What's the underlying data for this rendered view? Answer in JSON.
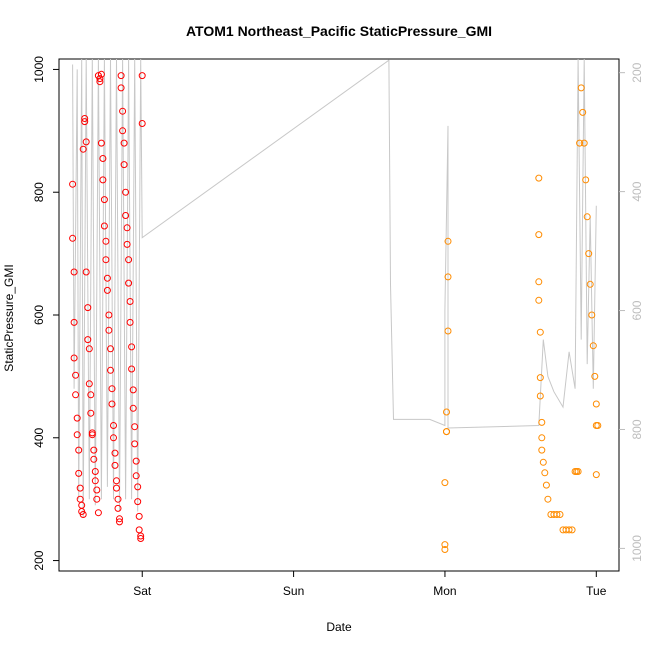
{
  "chart_data": {
    "type": "scatter",
    "title": "ATOM1 Northeast_Pacific StaticPressure_GMI",
    "xlabel": "Date",
    "ylabel": "StaticPressure_GMI",
    "x_ticks": [
      {
        "label": "Sat",
        "value": 1.0
      },
      {
        "label": "Sun",
        "value": 2.0
      },
      {
        "label": "Mon",
        "value": 3.0
      },
      {
        "label": "Tue",
        "value": 4.0
      }
    ],
    "xlim": [
      0.45,
      4.15
    ],
    "ylim": [
      183,
      1017
    ],
    "y_ticks": [
      200,
      400,
      600,
      800,
      1000
    ],
    "y2_ticks": [
      200,
      400,
      600,
      800,
      1000
    ],
    "y2lim": [
      1038,
      177
    ],
    "grid": false,
    "colors": {
      "series_a": "#ff0000",
      "series_b": "#ff8c00",
      "trace": "#c8c8c8",
      "right_axis": "#bdbdbd"
    },
    "series": [
      {
        "color": "#ff0000",
        "x": [
          0.54,
          0.54,
          0.55,
          0.55,
          0.55,
          0.56,
          0.56,
          0.57,
          0.57,
          0.58,
          0.58,
          0.59,
          0.59,
          0.6,
          0.6,
          0.61,
          0.61,
          0.62,
          0.62,
          0.63,
          0.63,
          0.64,
          0.64,
          0.65,
          0.65,
          0.66,
          0.66,
          0.67,
          0.67,
          0.68,
          0.68,
          0.69,
          0.69,
          0.7,
          0.7,
          0.71,
          0.71,
          0.72,
          0.72,
          0.73,
          0.73,
          0.74,
          0.74,
          0.75,
          0.75,
          0.76,
          0.76,
          0.77,
          0.77,
          0.78,
          0.78,
          0.79,
          0.79,
          0.8,
          0.8,
          0.81,
          0.81,
          0.82,
          0.82,
          0.83,
          0.83,
          0.84,
          0.84,
          0.85,
          0.85,
          0.86,
          0.86,
          0.87,
          0.87,
          0.88,
          0.88,
          0.89,
          0.89,
          0.9,
          0.9,
          0.91,
          0.91,
          0.92,
          0.92,
          0.93,
          0.93,
          0.94,
          0.94,
          0.95,
          0.95,
          0.96,
          0.96,
          0.97,
          0.97,
          0.98,
          0.98,
          0.99,
          0.99,
          1.0,
          1.0
        ],
        "y": [
          813,
          725,
          670,
          588,
          530,
          502,
          470,
          432,
          405,
          380,
          342,
          318,
          300,
          290,
          280,
          275,
          870,
          920,
          915,
          882,
          670,
          612,
          560,
          545,
          488,
          470,
          440,
          408,
          405,
          380,
          365,
          345,
          330,
          315,
          300,
          278,
          990,
          985,
          980,
          992,
          880,
          855,
          820,
          788,
          745,
          720,
          690,
          660,
          640,
          600,
          575,
          545,
          510,
          480,
          455,
          420,
          400,
          375,
          355,
          330,
          318,
          300,
          285,
          268,
          263,
          990,
          970,
          932,
          900,
          880,
          845,
          800,
          762,
          742,
          715,
          690,
          652,
          622,
          588,
          548,
          512,
          478,
          448,
          418,
          390,
          362,
          338,
          320,
          296,
          272,
          250,
          240,
          236,
          990,
          912
        ],
        "y_more": []
      },
      {
        "color": "#ff8c00",
        "x": [
          3.0,
          3.0,
          3.0,
          3.01,
          3.01,
          3.01,
          3.02,
          3.02,
          3.02,
          3.62,
          3.62,
          3.62,
          3.62,
          3.63,
          3.63,
          3.63,
          3.64,
          3.64,
          3.64,
          3.65,
          3.66,
          3.67,
          3.68,
          3.7,
          3.72,
          3.74,
          3.76,
          3.78,
          3.8,
          3.82,
          3.84,
          3.86,
          3.87,
          3.88,
          3.89,
          3.9,
          3.91,
          3.92,
          3.93,
          3.94,
          3.95,
          3.96,
          3.97,
          3.98,
          3.99,
          4.0,
          4.0,
          4.0,
          4.01
        ],
        "y": [
          218,
          226,
          327,
          410,
          410,
          442,
          574,
          662,
          720,
          823,
          731,
          654,
          624,
          572,
          498,
          468,
          425,
          400,
          380,
          360,
          343,
          323,
          300,
          275,
          275,
          275,
          275,
          250,
          250,
          250,
          250,
          345,
          345,
          345,
          880,
          970,
          930,
          880,
          820,
          760,
          700,
          650,
          600,
          550,
          500,
          455,
          420,
          340,
          420
        ]
      }
    ],
    "trace_note": ""
  }
}
